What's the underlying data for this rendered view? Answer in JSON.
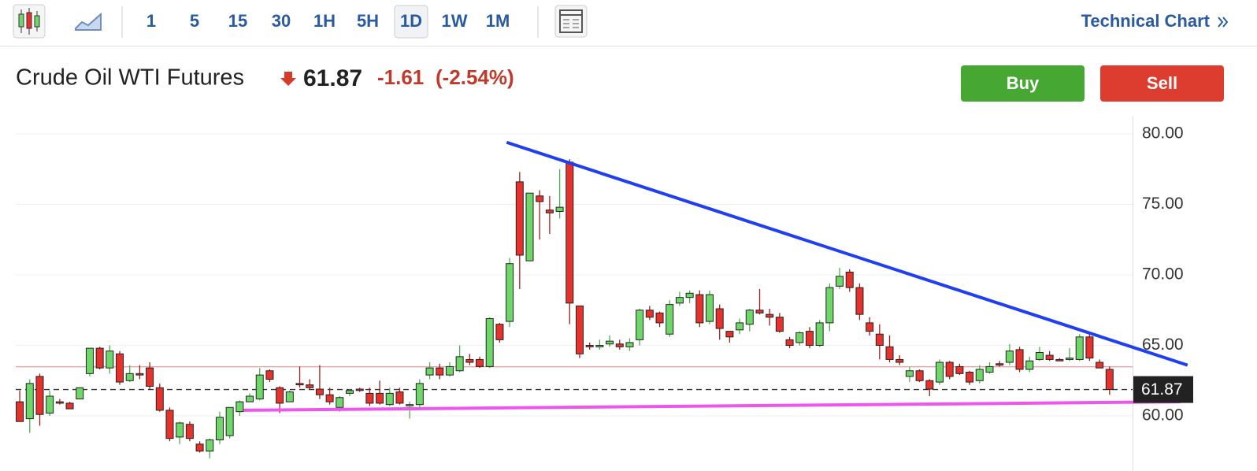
{
  "toolbar": {
    "intervals": [
      "1",
      "5",
      "15",
      "30",
      "1H",
      "5H",
      "1D",
      "1W",
      "1M"
    ],
    "active_interval": "1D",
    "technical_chart": "Technical Chart"
  },
  "header": {
    "title": "Crude Oil WTI Futures",
    "price": "61.87",
    "change": "-1.61",
    "change_percent": "(-2.54%)",
    "buy": "Buy",
    "sell": "Sell"
  },
  "chart_data": {
    "type": "candlestick",
    "up_color": "#6fd66a",
    "down_color": "#e5322d",
    "ylim": [
      56.65,
      81.23
    ],
    "xlim": [
      -0.4,
      111.3
    ],
    "yticks": [
      {
        "value": 60,
        "label": "60.00"
      },
      {
        "value": 65,
        "label": "65.00"
      },
      {
        "value": 70,
        "label": "70.00"
      },
      {
        "value": 75,
        "label": "75.00"
      },
      {
        "value": 80,
        "label": "80.00"
      }
    ],
    "grid": true,
    "previous_close": {
      "value": 63.48,
      "color": "#e88080"
    },
    "last_price": {
      "value": 61.87,
      "label": "61.87"
    },
    "trendlines": [
      {
        "color": "#1f3ff0",
        "x": [
          48.7,
          116.8
        ],
        "y": [
          79.4,
          63.6
        ]
      },
      {
        "color": "#ee55ee",
        "x": [
          22.4,
          116.1
        ],
        "y": [
          60.4,
          61.0
        ]
      }
    ],
    "candles": [
      {
        "open": 61.0,
        "high": 61.8,
        "low": 59.6,
        "close": 59.6
      },
      {
        "open": 59.8,
        "high": 62.6,
        "low": 58.8,
        "close": 62.3
      },
      {
        "open": 62.8,
        "high": 63.0,
        "low": 59.3,
        "close": 60.1
      },
      {
        "open": 60.2,
        "high": 61.8,
        "low": 60.0,
        "close": 61.4
      },
      {
        "open": 61.0,
        "high": 61.2,
        "low": 60.8,
        "close": 60.9
      },
      {
        "open": 60.9,
        "high": 61.0,
        "low": 60.5,
        "close": 60.5
      },
      {
        "open": 61.2,
        "high": 62.0,
        "low": 61.2,
        "close": 62.0
      },
      {
        "open": 63.0,
        "high": 64.8,
        "low": 62.8,
        "close": 64.8
      },
      {
        "open": 64.8,
        "high": 64.9,
        "low": 63.3,
        "close": 63.4
      },
      {
        "open": 63.4,
        "high": 65.0,
        "low": 63.0,
        "close": 64.6
      },
      {
        "open": 64.4,
        "high": 64.6,
        "low": 62.2,
        "close": 62.4
      },
      {
        "open": 62.5,
        "high": 63.6,
        "low": 62.4,
        "close": 63.0
      },
      {
        "open": 63.0,
        "high": 63.6,
        "low": 62.6,
        "close": 62.9
      },
      {
        "open": 63.4,
        "high": 63.8,
        "low": 61.9,
        "close": 62.1
      },
      {
        "open": 62.0,
        "high": 62.3,
        "low": 60.3,
        "close": 60.4
      },
      {
        "open": 60.4,
        "high": 60.6,
        "low": 58.2,
        "close": 58.4
      },
      {
        "open": 58.5,
        "high": 59.6,
        "low": 58.0,
        "close": 59.5
      },
      {
        "open": 59.4,
        "high": 59.6,
        "low": 58.2,
        "close": 58.4
      },
      {
        "open": 58.0,
        "high": 58.2,
        "low": 57.4,
        "close": 57.5
      },
      {
        "open": 57.5,
        "high": 58.4,
        "low": 57.0,
        "close": 58.3
      },
      {
        "open": 58.3,
        "high": 60.3,
        "low": 58.0,
        "close": 59.9
      },
      {
        "open": 58.6,
        "high": 60.6,
        "low": 58.4,
        "close": 60.6
      },
      {
        "open": 60.3,
        "high": 61.1,
        "low": 60.0,
        "close": 61.0
      },
      {
        "open": 61.0,
        "high": 61.6,
        "low": 61.0,
        "close": 61.4
      },
      {
        "open": 61.2,
        "high": 63.4,
        "low": 61.1,
        "close": 62.9
      },
      {
        "open": 63.2,
        "high": 63.3,
        "low": 62.4,
        "close": 62.6
      },
      {
        "open": 62.0,
        "high": 62.1,
        "low": 60.2,
        "close": 60.9
      },
      {
        "open": 61.0,
        "high": 61.8,
        "low": 61.0,
        "close": 61.7
      },
      {
        "open": 62.3,
        "high": 63.5,
        "low": 62.0,
        "close": 62.2
      },
      {
        "open": 62.2,
        "high": 62.6,
        "low": 61.9,
        "close": 62.0
      },
      {
        "open": 61.9,
        "high": 63.6,
        "low": 61.2,
        "close": 61.5
      },
      {
        "open": 61.5,
        "high": 62.0,
        "low": 60.8,
        "close": 61.0
      },
      {
        "open": 60.6,
        "high": 61.4,
        "low": 60.3,
        "close": 61.3
      },
      {
        "open": 61.6,
        "high": 61.9,
        "low": 61.4,
        "close": 61.8
      },
      {
        "open": 61.9,
        "high": 62.0,
        "low": 61.7,
        "close": 61.8
      },
      {
        "open": 61.6,
        "high": 62.0,
        "low": 60.7,
        "close": 60.9
      },
      {
        "open": 61.6,
        "high": 62.5,
        "low": 60.8,
        "close": 60.9
      },
      {
        "open": 60.8,
        "high": 62.0,
        "low": 60.7,
        "close": 61.6
      },
      {
        "open": 61.7,
        "high": 62.0,
        "low": 60.8,
        "close": 60.9
      },
      {
        "open": 60.8,
        "high": 61.0,
        "low": 59.8,
        "close": 60.8
      },
      {
        "open": 60.8,
        "high": 62.6,
        "low": 60.6,
        "close": 62.3
      },
      {
        "open": 62.9,
        "high": 63.8,
        "low": 62.6,
        "close": 63.4
      },
      {
        "open": 63.4,
        "high": 63.7,
        "low": 62.6,
        "close": 62.9
      },
      {
        "open": 62.9,
        "high": 63.8,
        "low": 62.8,
        "close": 63.5
      },
      {
        "open": 63.2,
        "high": 65.0,
        "low": 63.1,
        "close": 64.2
      },
      {
        "open": 64.0,
        "high": 64.4,
        "low": 63.6,
        "close": 63.8
      },
      {
        "open": 64.0,
        "high": 64.2,
        "low": 63.4,
        "close": 63.5
      },
      {
        "open": 63.5,
        "high": 67.0,
        "low": 63.4,
        "close": 66.9
      },
      {
        "open": 66.5,
        "high": 66.6,
        "low": 65.2,
        "close": 65.4
      },
      {
        "open": 66.7,
        "high": 71.2,
        "low": 66.3,
        "close": 70.8
      },
      {
        "open": 76.6,
        "high": 77.3,
        "low": 69.0,
        "close": 71.4
      },
      {
        "open": 71.0,
        "high": 75.8,
        "low": 71.0,
        "close": 75.8
      },
      {
        "open": 75.6,
        "high": 76.0,
        "low": 72.5,
        "close": 75.2
      },
      {
        "open": 74.6,
        "high": 75.6,
        "low": 72.9,
        "close": 74.4
      },
      {
        "open": 74.5,
        "high": 77.5,
        "low": 74.0,
        "close": 74.8
      },
      {
        "open": 78.0,
        "high": 78.2,
        "low": 66.5,
        "close": 68.0
      },
      {
        "open": 67.8,
        "high": 67.8,
        "low": 64.1,
        "close": 64.4
      },
      {
        "open": 65.0,
        "high": 65.2,
        "low": 64.7,
        "close": 64.9
      },
      {
        "open": 64.9,
        "high": 65.4,
        "low": 64.7,
        "close": 65.0
      },
      {
        "open": 65.1,
        "high": 65.7,
        "low": 64.9,
        "close": 65.3
      },
      {
        "open": 65.1,
        "high": 65.4,
        "low": 64.7,
        "close": 64.9
      },
      {
        "open": 64.9,
        "high": 65.5,
        "low": 64.6,
        "close": 65.2
      },
      {
        "open": 65.4,
        "high": 67.6,
        "low": 65.0,
        "close": 67.5
      },
      {
        "open": 67.5,
        "high": 67.8,
        "low": 66.8,
        "close": 67.0
      },
      {
        "open": 67.3,
        "high": 67.4,
        "low": 66.3,
        "close": 66.6
      },
      {
        "open": 65.8,
        "high": 68.2,
        "low": 65.6,
        "close": 67.9
      },
      {
        "open": 68.0,
        "high": 68.8,
        "low": 67.8,
        "close": 68.4
      },
      {
        "open": 68.4,
        "high": 68.9,
        "low": 68.0,
        "close": 68.7
      },
      {
        "open": 68.6,
        "high": 68.9,
        "low": 66.3,
        "close": 66.6
      },
      {
        "open": 66.7,
        "high": 68.9,
        "low": 66.5,
        "close": 68.6
      },
      {
        "open": 67.6,
        "high": 67.9,
        "low": 65.4,
        "close": 66.2
      },
      {
        "open": 66.0,
        "high": 66.0,
        "low": 65.2,
        "close": 65.6
      },
      {
        "open": 66.1,
        "high": 66.9,
        "low": 65.8,
        "close": 66.6
      },
      {
        "open": 66.5,
        "high": 67.6,
        "low": 66.0,
        "close": 67.5
      },
      {
        "open": 67.5,
        "high": 69.0,
        "low": 67.2,
        "close": 67.3
      },
      {
        "open": 67.2,
        "high": 67.6,
        "low": 66.4,
        "close": 67.0
      },
      {
        "open": 67.0,
        "high": 67.3,
        "low": 65.9,
        "close": 66.0
      },
      {
        "open": 65.4,
        "high": 65.6,
        "low": 64.8,
        "close": 65.0
      },
      {
        "open": 65.2,
        "high": 66.0,
        "low": 65.0,
        "close": 65.9
      },
      {
        "open": 66.0,
        "high": 66.3,
        "low": 64.8,
        "close": 65.0
      },
      {
        "open": 65.0,
        "high": 66.8,
        "low": 64.9,
        "close": 66.6
      },
      {
        "open": 66.6,
        "high": 69.4,
        "low": 66.0,
        "close": 69.1
      },
      {
        "open": 69.2,
        "high": 70.5,
        "low": 69.0,
        "close": 69.9
      },
      {
        "open": 70.2,
        "high": 70.4,
        "low": 68.8,
        "close": 69.1
      },
      {
        "open": 69.1,
        "high": 69.4,
        "low": 66.8,
        "close": 67.2
      },
      {
        "open": 66.6,
        "high": 67.0,
        "low": 65.7,
        "close": 66.0
      },
      {
        "open": 65.8,
        "high": 66.5,
        "low": 64.0,
        "close": 65.0
      },
      {
        "open": 64.9,
        "high": 65.7,
        "low": 63.8,
        "close": 64.0
      },
      {
        "open": 64.0,
        "high": 64.3,
        "low": 63.6,
        "close": 63.8
      },
      {
        "open": 62.8,
        "high": 63.5,
        "low": 62.4,
        "close": 63.2
      },
      {
        "open": 63.2,
        "high": 63.3,
        "low": 62.4,
        "close": 62.5
      },
      {
        "open": 62.5,
        "high": 62.6,
        "low": 61.4,
        "close": 61.9
      },
      {
        "open": 62.4,
        "high": 64.0,
        "low": 62.2,
        "close": 63.8
      },
      {
        "open": 63.8,
        "high": 63.9,
        "low": 62.6,
        "close": 62.8
      },
      {
        "open": 63.5,
        "high": 63.7,
        "low": 62.9,
        "close": 63.0
      },
      {
        "open": 63.1,
        "high": 63.2,
        "low": 62.2,
        "close": 62.4
      },
      {
        "open": 62.5,
        "high": 63.6,
        "low": 62.3,
        "close": 63.3
      },
      {
        "open": 63.1,
        "high": 63.8,
        "low": 63.0,
        "close": 63.5
      },
      {
        "open": 63.7,
        "high": 63.9,
        "low": 63.5,
        "close": 63.6
      },
      {
        "open": 63.8,
        "high": 65.1,
        "low": 63.6,
        "close": 64.6
      },
      {
        "open": 64.7,
        "high": 64.9,
        "low": 63.1,
        "close": 63.3
      },
      {
        "open": 63.3,
        "high": 64.2,
        "low": 63.1,
        "close": 63.9
      },
      {
        "open": 64.0,
        "high": 64.9,
        "low": 63.9,
        "close": 64.5
      },
      {
        "open": 64.3,
        "high": 64.6,
        "low": 63.9,
        "close": 64.0
      },
      {
        "open": 64.0,
        "high": 64.1,
        "low": 63.9,
        "close": 63.9
      },
      {
        "open": 64.0,
        "high": 64.8,
        "low": 63.9,
        "close": 64.1
      },
      {
        "open": 64.0,
        "high": 65.8,
        "low": 63.9,
        "close": 65.6
      },
      {
        "open": 65.6,
        "high": 65.8,
        "low": 63.9,
        "close": 64.1
      },
      {
        "open": 63.8,
        "high": 64.0,
        "low": 63.4,
        "close": 63.4
      },
      {
        "open": 63.3,
        "high": 63.5,
        "low": 61.5,
        "close": 61.87
      }
    ]
  }
}
